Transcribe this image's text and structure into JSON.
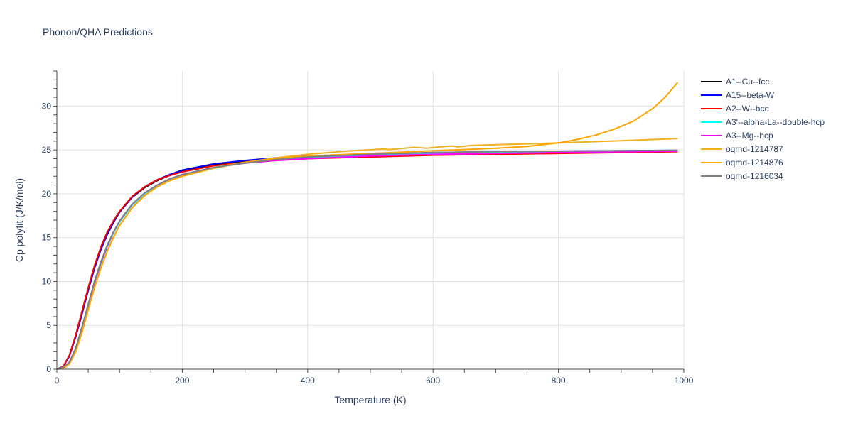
{
  "chart_data": {
    "type": "line",
    "title": "Phonon/QHA Predictions",
    "xlabel": "Temperature (K)",
    "ylabel": "Cp polyfit (J/K/mol)",
    "xlim": [
      0,
      1000
    ],
    "ylim": [
      0,
      34
    ],
    "xticks": [
      0,
      200,
      400,
      600,
      800,
      1000
    ],
    "yticks": [
      0,
      5,
      10,
      15,
      20,
      25,
      30
    ],
    "grid": true,
    "legend_position": "right",
    "series": [
      {
        "name": "A1--Cu--fcc",
        "color": "#000000",
        "x": [
          0,
          10,
          20,
          30,
          40,
          50,
          60,
          70,
          80,
          90,
          100,
          120,
          140,
          160,
          180,
          200,
          250,
          300,
          350,
          400,
          500,
          600,
          700,
          800,
          900,
          990
        ],
        "y": [
          0,
          0.3,
          1.5,
          3.7,
          6.3,
          9.0,
          11.5,
          13.6,
          15.3,
          16.7,
          17.9,
          19.6,
          20.7,
          21.5,
          22.1,
          22.6,
          23.3,
          23.7,
          24.0,
          24.2,
          24.4,
          24.6,
          24.7,
          24.8,
          24.85,
          24.9
        ]
      },
      {
        "name": "A15--beta-W",
        "color": "#0000ff",
        "x": [
          0,
          10,
          20,
          30,
          40,
          50,
          60,
          70,
          80,
          90,
          100,
          120,
          140,
          160,
          180,
          200,
          250,
          300,
          350,
          400,
          500,
          600,
          700,
          800,
          900,
          990
        ],
        "y": [
          0,
          0.3,
          1.5,
          3.7,
          6.3,
          9.0,
          11.5,
          13.6,
          15.3,
          16.7,
          17.9,
          19.6,
          20.8,
          21.6,
          22.2,
          22.7,
          23.4,
          23.8,
          24.1,
          24.3,
          24.5,
          24.7,
          24.8,
          24.85,
          24.9,
          24.95
        ]
      },
      {
        "name": "A2--W--bcc",
        "color": "#ff0000",
        "x": [
          0,
          10,
          20,
          30,
          40,
          50,
          60,
          70,
          80,
          90,
          100,
          120,
          140,
          160,
          180,
          200,
          250,
          300,
          350,
          400,
          500,
          600,
          700,
          800,
          900,
          990
        ],
        "y": [
          0,
          0.3,
          1.6,
          3.9,
          6.6,
          9.3,
          11.8,
          13.9,
          15.6,
          16.9,
          18.0,
          19.7,
          20.8,
          21.6,
          22.1,
          22.5,
          23.2,
          23.6,
          23.8,
          24.0,
          24.2,
          24.4,
          24.5,
          24.6,
          24.7,
          24.8
        ]
      },
      {
        "name": "A3'--alpha-La--double-hcp",
        "color": "#00ffff",
        "x": [
          0,
          10,
          20,
          30,
          40,
          50,
          60,
          70,
          80,
          90,
          100,
          120,
          140,
          160,
          180,
          200,
          250,
          300,
          350,
          400,
          500,
          600,
          700,
          800,
          900,
          990
        ],
        "y": [
          0,
          0.2,
          0.8,
          2.3,
          4.6,
          7.2,
          9.8,
          12.0,
          13.9,
          15.5,
          16.8,
          18.7,
          20.0,
          20.9,
          21.6,
          22.1,
          23.0,
          23.5,
          23.8,
          24.1,
          24.4,
          24.6,
          24.7,
          24.8,
          24.85,
          24.9
        ]
      },
      {
        "name": "A3--Mg--hcp",
        "color": "#ff00ff",
        "x": [
          0,
          10,
          20,
          30,
          40,
          50,
          60,
          70,
          80,
          90,
          100,
          120,
          140,
          160,
          180,
          200,
          250,
          300,
          350,
          400,
          500,
          600,
          700,
          800,
          900,
          990
        ],
        "y": [
          0,
          0.2,
          0.8,
          2.3,
          4.7,
          7.3,
          9.9,
          12.1,
          14.0,
          15.6,
          16.9,
          18.8,
          20.1,
          21.0,
          21.7,
          22.2,
          23.0,
          23.5,
          23.8,
          24.0,
          24.3,
          24.5,
          24.6,
          24.7,
          24.8,
          24.85
        ]
      },
      {
        "name": "oqmd-1214787",
        "color": "#f0b020",
        "x": [
          0,
          10,
          20,
          30,
          40,
          50,
          60,
          70,
          80,
          90,
          100,
          120,
          140,
          160,
          180,
          200,
          250,
          300,
          350,
          400,
          460,
          520,
          530,
          570,
          590,
          610,
          630,
          640,
          660,
          700,
          800,
          900,
          990
        ],
        "y": [
          0,
          0.1,
          0.6,
          2.0,
          4.2,
          6.8,
          9.3,
          11.5,
          13.4,
          15.0,
          16.4,
          18.4,
          19.8,
          20.8,
          21.5,
          22.0,
          22.9,
          23.6,
          24.1,
          24.5,
          24.85,
          25.1,
          25.05,
          25.3,
          25.2,
          25.35,
          25.45,
          25.35,
          25.5,
          25.6,
          25.8,
          26.05,
          26.3
        ]
      },
      {
        "name": "oqmd-1214876",
        "color": "#ffa500",
        "x": [
          0,
          10,
          20,
          30,
          40,
          50,
          60,
          70,
          80,
          90,
          100,
          120,
          140,
          160,
          180,
          200,
          250,
          300,
          350,
          400,
          500,
          600,
          700,
          750,
          800,
          830,
          860,
          890,
          920,
          950,
          970,
          990
        ],
        "y": [
          0,
          0.1,
          0.6,
          2.0,
          4.2,
          6.8,
          9.3,
          11.5,
          13.4,
          15.0,
          16.4,
          18.4,
          19.8,
          20.8,
          21.5,
          22.0,
          23.0,
          23.6,
          24.0,
          24.3,
          24.6,
          24.9,
          25.2,
          25.4,
          25.8,
          26.2,
          26.7,
          27.4,
          28.3,
          29.7,
          31.0,
          32.7
        ]
      },
      {
        "name": "oqmd-1216034",
        "color": "#808080",
        "x": [
          0,
          10,
          20,
          30,
          40,
          50,
          60,
          70,
          80,
          90,
          100,
          120,
          140,
          160,
          180,
          200,
          250,
          300,
          350,
          400,
          500,
          600,
          700,
          800,
          900,
          990
        ],
        "y": [
          0,
          0.2,
          0.8,
          2.4,
          4.8,
          7.4,
          10.0,
          12.2,
          14.1,
          15.6,
          16.9,
          18.8,
          20.1,
          21.0,
          21.7,
          22.2,
          23.0,
          23.5,
          23.9,
          24.2,
          24.5,
          24.7,
          24.8,
          24.85,
          24.9,
          24.95
        ]
      }
    ]
  }
}
